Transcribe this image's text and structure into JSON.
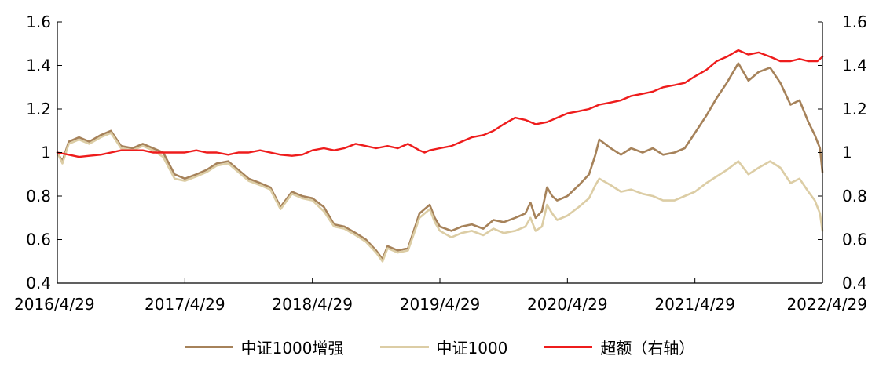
{
  "chart_data": {
    "type": "line",
    "title": "",
    "x_tick_labels": [
      "2016/4/29",
      "2017/4/29",
      "2018/4/29",
      "2019/4/29",
      "2020/4/29",
      "2021/4/29",
      "2022/4/29"
    ],
    "x_range": [
      2016.33,
      2022.33
    ],
    "left_axis": {
      "ylim": [
        0.4,
        1.6
      ],
      "tick_labels": [
        "0.4",
        "0.6",
        "0.8",
        "1",
        "1.2",
        "1.4",
        "1.6"
      ]
    },
    "right_axis": {
      "ylim": [
        0.4,
        1.6
      ],
      "tick_labels": [
        "0.4",
        "0.6",
        "0.8",
        "1",
        "1.2",
        "1.4",
        "1.6"
      ]
    },
    "grid": false,
    "legend_position": "bottom-center",
    "series": [
      {
        "name": "中证1000增强",
        "color": "#A6825A",
        "axis": "left",
        "points": [
          [
            2016.33,
            1.0
          ],
          [
            2016.37,
            0.96
          ],
          [
            2016.42,
            1.05
          ],
          [
            2016.5,
            1.07
          ],
          [
            2016.58,
            1.05
          ],
          [
            2016.67,
            1.08
          ],
          [
            2016.75,
            1.1
          ],
          [
            2016.83,
            1.03
          ],
          [
            2016.92,
            1.02
          ],
          [
            2017.0,
            1.04
          ],
          [
            2017.08,
            1.02
          ],
          [
            2017.16,
            1.0
          ],
          [
            2017.25,
            0.9
          ],
          [
            2017.33,
            0.88
          ],
          [
            2017.42,
            0.9
          ],
          [
            2017.5,
            0.92
          ],
          [
            2017.58,
            0.95
          ],
          [
            2017.67,
            0.96
          ],
          [
            2017.75,
            0.92
          ],
          [
            2017.83,
            0.88
          ],
          [
            2017.92,
            0.86
          ],
          [
            2018.0,
            0.84
          ],
          [
            2018.08,
            0.75
          ],
          [
            2018.17,
            0.82
          ],
          [
            2018.25,
            0.8
          ],
          [
            2018.33,
            0.79
          ],
          [
            2018.42,
            0.75
          ],
          [
            2018.5,
            0.67
          ],
          [
            2018.58,
            0.66
          ],
          [
            2018.67,
            0.63
          ],
          [
            2018.75,
            0.6
          ],
          [
            2018.83,
            0.55
          ],
          [
            2018.88,
            0.51
          ],
          [
            2018.92,
            0.57
          ],
          [
            2019.0,
            0.55
          ],
          [
            2019.08,
            0.56
          ],
          [
            2019.17,
            0.72
          ],
          [
            2019.25,
            0.76
          ],
          [
            2019.29,
            0.7
          ],
          [
            2019.33,
            0.66
          ],
          [
            2019.42,
            0.64
          ],
          [
            2019.5,
            0.66
          ],
          [
            2019.58,
            0.67
          ],
          [
            2019.67,
            0.65
          ],
          [
            2019.75,
            0.69
          ],
          [
            2019.83,
            0.68
          ],
          [
            2019.92,
            0.7
          ],
          [
            2020.0,
            0.72
          ],
          [
            2020.04,
            0.77
          ],
          [
            2020.08,
            0.7
          ],
          [
            2020.13,
            0.73
          ],
          [
            2020.17,
            0.84
          ],
          [
            2020.21,
            0.8
          ],
          [
            2020.25,
            0.78
          ],
          [
            2020.33,
            0.8
          ],
          [
            2020.42,
            0.85
          ],
          [
            2020.5,
            0.9
          ],
          [
            2020.55,
            0.99
          ],
          [
            2020.58,
            1.06
          ],
          [
            2020.67,
            1.02
          ],
          [
            2020.75,
            0.99
          ],
          [
            2020.83,
            1.02
          ],
          [
            2020.92,
            1.0
          ],
          [
            2021.0,
            1.02
          ],
          [
            2021.08,
            0.99
          ],
          [
            2021.17,
            1.0
          ],
          [
            2021.25,
            1.02
          ],
          [
            2021.33,
            1.09
          ],
          [
            2021.42,
            1.17
          ],
          [
            2021.5,
            1.25
          ],
          [
            2021.58,
            1.32
          ],
          [
            2021.67,
            1.41
          ],
          [
            2021.75,
            1.33
          ],
          [
            2021.83,
            1.37
          ],
          [
            2021.92,
            1.39
          ],
          [
            2022.0,
            1.32
          ],
          [
            2022.08,
            1.22
          ],
          [
            2022.15,
            1.24
          ],
          [
            2022.22,
            1.14
          ],
          [
            2022.27,
            1.08
          ],
          [
            2022.31,
            1.02
          ],
          [
            2022.33,
            0.91
          ]
        ]
      },
      {
        "name": "中证1000",
        "color": "#DCCDA5",
        "axis": "left",
        "points": [
          [
            2016.33,
            1.0
          ],
          [
            2016.37,
            0.95
          ],
          [
            2016.42,
            1.04
          ],
          [
            2016.5,
            1.06
          ],
          [
            2016.58,
            1.04
          ],
          [
            2016.67,
            1.07
          ],
          [
            2016.75,
            1.09
          ],
          [
            2016.83,
            1.02
          ],
          [
            2016.92,
            1.01
          ],
          [
            2017.0,
            1.03
          ],
          [
            2017.08,
            1.01
          ],
          [
            2017.16,
            0.98
          ],
          [
            2017.25,
            0.88
          ],
          [
            2017.33,
            0.87
          ],
          [
            2017.42,
            0.89
          ],
          [
            2017.5,
            0.91
          ],
          [
            2017.58,
            0.94
          ],
          [
            2017.67,
            0.95
          ],
          [
            2017.75,
            0.91
          ],
          [
            2017.83,
            0.87
          ],
          [
            2017.92,
            0.85
          ],
          [
            2018.0,
            0.83
          ],
          [
            2018.08,
            0.74
          ],
          [
            2018.17,
            0.81
          ],
          [
            2018.25,
            0.79
          ],
          [
            2018.33,
            0.78
          ],
          [
            2018.42,
            0.73
          ],
          [
            2018.5,
            0.66
          ],
          [
            2018.58,
            0.65
          ],
          [
            2018.67,
            0.62
          ],
          [
            2018.75,
            0.59
          ],
          [
            2018.83,
            0.54
          ],
          [
            2018.88,
            0.5
          ],
          [
            2018.92,
            0.56
          ],
          [
            2019.0,
            0.54
          ],
          [
            2019.08,
            0.55
          ],
          [
            2019.17,
            0.7
          ],
          [
            2019.25,
            0.74
          ],
          [
            2019.29,
            0.68
          ],
          [
            2019.33,
            0.64
          ],
          [
            2019.42,
            0.61
          ],
          [
            2019.5,
            0.63
          ],
          [
            2019.58,
            0.64
          ],
          [
            2019.67,
            0.62
          ],
          [
            2019.75,
            0.65
          ],
          [
            2019.83,
            0.63
          ],
          [
            2019.92,
            0.64
          ],
          [
            2020.0,
            0.66
          ],
          [
            2020.04,
            0.7
          ],
          [
            2020.08,
            0.64
          ],
          [
            2020.13,
            0.66
          ],
          [
            2020.17,
            0.76
          ],
          [
            2020.21,
            0.72
          ],
          [
            2020.25,
            0.69
          ],
          [
            2020.33,
            0.71
          ],
          [
            2020.42,
            0.75
          ],
          [
            2020.5,
            0.79
          ],
          [
            2020.55,
            0.85
          ],
          [
            2020.58,
            0.88
          ],
          [
            2020.67,
            0.85
          ],
          [
            2020.75,
            0.82
          ],
          [
            2020.83,
            0.83
          ],
          [
            2020.92,
            0.81
          ],
          [
            2021.0,
            0.8
          ],
          [
            2021.08,
            0.78
          ],
          [
            2021.17,
            0.78
          ],
          [
            2021.25,
            0.8
          ],
          [
            2021.33,
            0.82
          ],
          [
            2021.42,
            0.86
          ],
          [
            2021.5,
            0.89
          ],
          [
            2021.58,
            0.92
          ],
          [
            2021.67,
            0.96
          ],
          [
            2021.75,
            0.9
          ],
          [
            2021.83,
            0.93
          ],
          [
            2021.92,
            0.96
          ],
          [
            2022.0,
            0.93
          ],
          [
            2022.08,
            0.86
          ],
          [
            2022.15,
            0.88
          ],
          [
            2022.22,
            0.82
          ],
          [
            2022.27,
            0.78
          ],
          [
            2022.31,
            0.72
          ],
          [
            2022.33,
            0.64
          ]
        ]
      },
      {
        "name": "超额（右轴）",
        "color": "#EE1C1C",
        "axis": "right",
        "points": [
          [
            2016.33,
            1.0
          ],
          [
            2016.42,
            0.99
          ],
          [
            2016.5,
            0.98
          ],
          [
            2016.58,
            0.985
          ],
          [
            2016.67,
            0.99
          ],
          [
            2016.75,
            1.0
          ],
          [
            2016.83,
            1.01
          ],
          [
            2016.92,
            1.01
          ],
          [
            2017.0,
            1.01
          ],
          [
            2017.08,
            1.0
          ],
          [
            2017.16,
            1.0
          ],
          [
            2017.25,
            1.0
          ],
          [
            2017.33,
            1.0
          ],
          [
            2017.42,
            1.01
          ],
          [
            2017.5,
            1.0
          ],
          [
            2017.58,
            1.0
          ],
          [
            2017.67,
            0.99
          ],
          [
            2017.75,
            1.0
          ],
          [
            2017.83,
            1.0
          ],
          [
            2017.92,
            1.01
          ],
          [
            2018.0,
            1.0
          ],
          [
            2018.08,
            0.99
          ],
          [
            2018.17,
            0.985
          ],
          [
            2018.25,
            0.99
          ],
          [
            2018.33,
            1.01
          ],
          [
            2018.42,
            1.02
          ],
          [
            2018.5,
            1.01
          ],
          [
            2018.58,
            1.02
          ],
          [
            2018.67,
            1.04
          ],
          [
            2018.75,
            1.03
          ],
          [
            2018.83,
            1.02
          ],
          [
            2018.92,
            1.03
          ],
          [
            2019.0,
            1.02
          ],
          [
            2019.08,
            1.04
          ],
          [
            2019.17,
            1.01
          ],
          [
            2019.21,
            1.0
          ],
          [
            2019.25,
            1.01
          ],
          [
            2019.33,
            1.02
          ],
          [
            2019.42,
            1.03
          ],
          [
            2019.5,
            1.05
          ],
          [
            2019.58,
            1.07
          ],
          [
            2019.67,
            1.08
          ],
          [
            2019.75,
            1.1
          ],
          [
            2019.83,
            1.13
          ],
          [
            2019.92,
            1.16
          ],
          [
            2020.0,
            1.15
          ],
          [
            2020.08,
            1.13
          ],
          [
            2020.17,
            1.14
          ],
          [
            2020.25,
            1.16
          ],
          [
            2020.33,
            1.18
          ],
          [
            2020.42,
            1.19
          ],
          [
            2020.5,
            1.2
          ],
          [
            2020.58,
            1.22
          ],
          [
            2020.67,
            1.23
          ],
          [
            2020.75,
            1.24
          ],
          [
            2020.83,
            1.26
          ],
          [
            2020.92,
            1.27
          ],
          [
            2021.0,
            1.28
          ],
          [
            2021.08,
            1.3
          ],
          [
            2021.17,
            1.31
          ],
          [
            2021.25,
            1.32
          ],
          [
            2021.33,
            1.35
          ],
          [
            2021.42,
            1.38
          ],
          [
            2021.5,
            1.42
          ],
          [
            2021.58,
            1.44
          ],
          [
            2021.67,
            1.47
          ],
          [
            2021.75,
            1.45
          ],
          [
            2021.83,
            1.46
          ],
          [
            2021.92,
            1.44
          ],
          [
            2022.0,
            1.42
          ],
          [
            2022.08,
            1.42
          ],
          [
            2022.15,
            1.43
          ],
          [
            2022.22,
            1.42
          ],
          [
            2022.29,
            1.42
          ],
          [
            2022.33,
            1.44
          ]
        ]
      }
    ]
  }
}
